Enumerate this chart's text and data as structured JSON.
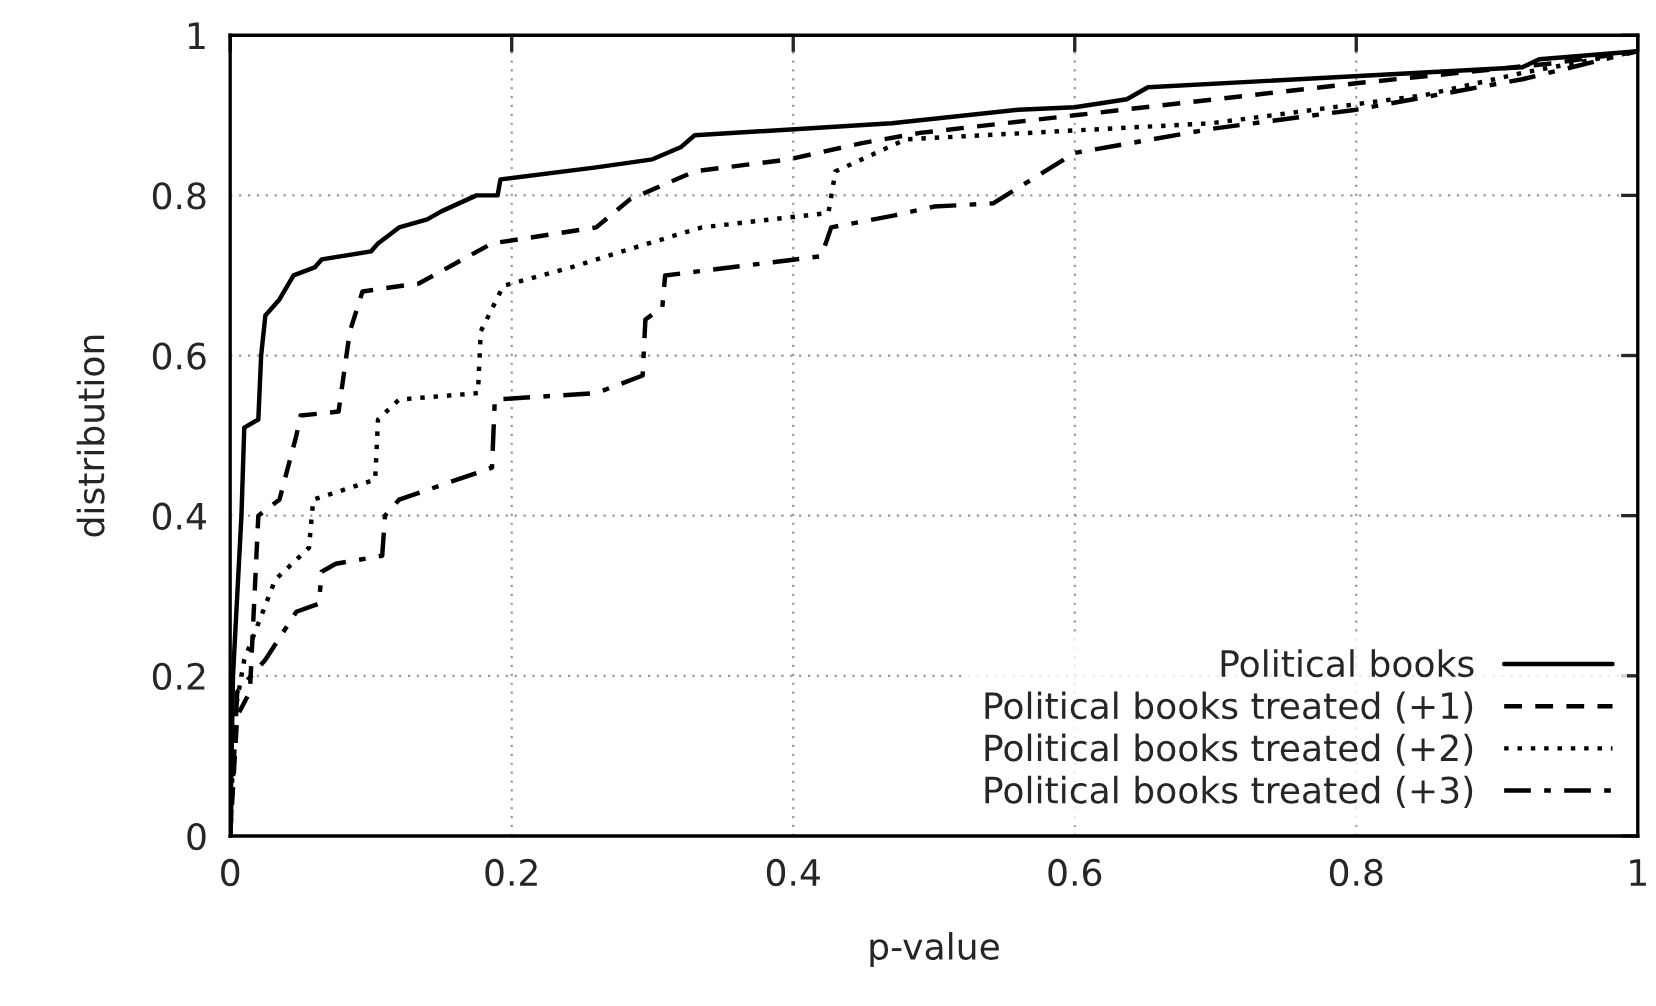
{
  "chart_data": {
    "type": "line",
    "xlabel": "p-value",
    "ylabel": "distribution",
    "xlim": [
      0,
      1
    ],
    "ylim": [
      0,
      1
    ],
    "xticks": [
      0,
      0.2,
      0.4,
      0.6,
      0.8,
      1
    ],
    "yticks": [
      0,
      0.2,
      0.4,
      0.6,
      0.8,
      1
    ],
    "grid": true,
    "legend": "bottom right",
    "marker": "none",
    "series": [
      {
        "name": "Political books",
        "color": "#000000",
        "line_style": "solid",
        "x": [
          0,
          0.002,
          0.005,
          0.008,
          0.01,
          0.02,
          0.022,
          0.025,
          0.035,
          0.045,
          0.06,
          0.065,
          0.1,
          0.105,
          0.12,
          0.14,
          0.15,
          0.175,
          0.19,
          0.192,
          0.26,
          0.3,
          0.32,
          0.33,
          0.47,
          0.56,
          0.6,
          0.637,
          0.652,
          0.918,
          0.93,
          1
        ],
        "values": [
          0,
          0.2,
          0.3,
          0.4,
          0.51,
          0.52,
          0.6,
          0.65,
          0.67,
          0.7,
          0.71,
          0.72,
          0.73,
          0.74,
          0.76,
          0.77,
          0.78,
          0.8,
          0.8,
          0.82,
          0.835,
          0.845,
          0.86,
          0.875,
          0.89,
          0.907,
          0.91,
          0.92,
          0.935,
          0.96,
          0.97,
          0.98
        ]
      },
      {
        "name": "Political books treated (+1)",
        "color": "#000000",
        "line_style": "dashed",
        "x": [
          0,
          0.005,
          0.014,
          0.02,
          0.035,
          0.047,
          0.05,
          0.077,
          0.085,
          0.094,
          0.134,
          0.186,
          0.26,
          0.284,
          0.33,
          0.397,
          0.448,
          0.49,
          0.6,
          0.8,
          0.94,
          1
        ],
        "values": [
          0,
          0.15,
          0.18,
          0.4,
          0.42,
          0.5,
          0.525,
          0.53,
          0.63,
          0.68,
          0.69,
          0.74,
          0.76,
          0.795,
          0.83,
          0.845,
          0.865,
          0.878,
          0.9,
          0.94,
          0.965,
          0.98
        ]
      },
      {
        "name": "Political books treated (+2)",
        "color": "#000000",
        "line_style": "dotted",
        "x": [
          0,
          0.003,
          0.01,
          0.032,
          0.056,
          0.059,
          0.103,
          0.105,
          0.12,
          0.176,
          0.178,
          0.194,
          0.242,
          0.284,
          0.335,
          0.425,
          0.43,
          0.48,
          0.697,
          0.848,
          0.918,
          1
        ],
        "values": [
          0,
          0.15,
          0.22,
          0.32,
          0.36,
          0.42,
          0.445,
          0.52,
          0.545,
          0.553,
          0.63,
          0.687,
          0.71,
          0.733,
          0.76,
          0.778,
          0.83,
          0.87,
          0.89,
          0.925,
          0.953,
          0.98
        ]
      },
      {
        "name": "Political books treated (+3)",
        "color": "#000000",
        "line_style": "dashdot",
        "x": [
          0,
          0.005,
          0.025,
          0.047,
          0.063,
          0.065,
          0.075,
          0.108,
          0.11,
          0.12,
          0.186,
          0.188,
          0.26,
          0.293,
          0.295,
          0.307,
          0.309,
          0.42,
          0.427,
          0.472,
          0.5,
          0.542,
          0.6,
          0.697,
          0.8,
          0.918,
          1
        ],
        "values": [
          0,
          0.18,
          0.22,
          0.28,
          0.29,
          0.33,
          0.34,
          0.35,
          0.4,
          0.42,
          0.46,
          0.545,
          0.553,
          0.575,
          0.645,
          0.66,
          0.7,
          0.724,
          0.76,
          0.775,
          0.786,
          0.79,
          0.853,
          0.883,
          0.907,
          0.945,
          0.98
        ]
      }
    ]
  }
}
